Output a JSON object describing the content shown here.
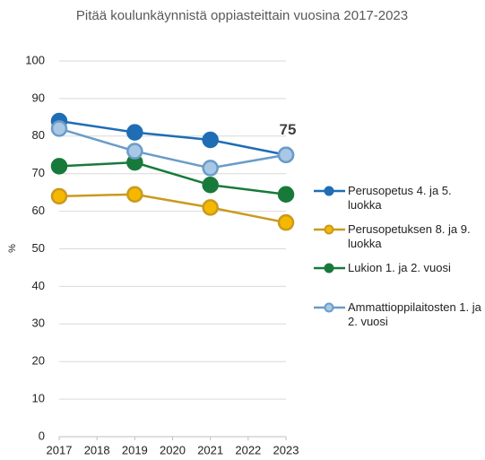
{
  "chart_data": {
    "type": "line",
    "title": "Pitää koulunkäynnistä oppiasteittain vuosina 2017-2023",
    "y_label": "%",
    "x": [
      2017,
      2019,
      2021,
      2023
    ],
    "xlim": [
      2017,
      2023
    ],
    "xticks": [
      2017,
      2018,
      2019,
      2020,
      2021,
      2022,
      2023
    ],
    "ylim": [
      0,
      100
    ],
    "yticks": [
      0,
      10,
      20,
      30,
      40,
      50,
      60,
      70,
      80,
      90,
      100
    ],
    "grid": true,
    "legend": "right",
    "series": [
      {
        "name": "Perusopetus 4. ja 5. luokka",
        "color": "#1f6db5",
        "marker_fill": "#1f6db5",
        "values": [
          84,
          81,
          79,
          75
        ]
      },
      {
        "name": "Perusopetuksen 8. ja 9. luokka",
        "color": "#c99a1e",
        "marker_fill": "#f5b800",
        "values": [
          64,
          64.5,
          61,
          57
        ]
      },
      {
        "name": "Lukion 1. ja 2. vuosi",
        "color": "#187a3a",
        "marker_fill": "#187a3a",
        "values": [
          72,
          73,
          67,
          64.5
        ]
      },
      {
        "name": "Ammattioppilaitosten 1. ja 2. vuosi",
        "color": "#6a9cc8",
        "marker_fill": "#a9c8e6",
        "values": [
          82,
          76,
          71.5,
          75
        ],
        "value_labels": [
          null,
          null,
          null,
          "75"
        ]
      }
    ]
  }
}
